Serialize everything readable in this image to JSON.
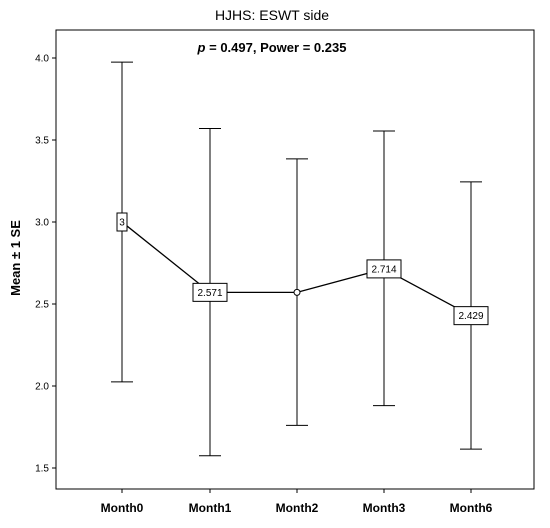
{
  "chart_data": {
    "type": "line",
    "title": "HJHS: ESWT side",
    "annotation_p_label": "p",
    "annotation_rest": " = 0.497, Power = 0.235",
    "xlabel": "",
    "ylabel": "Mean ± 1 SE",
    "categories": [
      "Month0",
      "Month1",
      "Month2",
      "Month3",
      "Month6"
    ],
    "ylim": [
      1.4,
      4.1
    ],
    "yticks": [
      "1.5",
      "2.0",
      "2.5",
      "3.0",
      "3.5",
      "4.0"
    ],
    "series": [
      {
        "values": [
          3.0,
          2.571,
          2.571,
          2.714,
          2.429
        ],
        "upper": [
          3.975,
          3.57,
          3.385,
          3.555,
          3.245
        ],
        "lower": [
          2.025,
          1.575,
          1.76,
          1.88,
          1.615
        ],
        "data_labels": [
          "3",
          "2.571",
          "",
          "2.714",
          "2.429"
        ]
      }
    ],
    "grid": false,
    "legend": "none"
  }
}
